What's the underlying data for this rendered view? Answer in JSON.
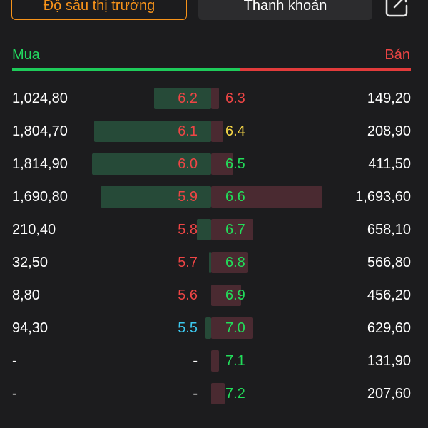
{
  "tabs": {
    "depth": "Độ sâu thị trường",
    "liquidity": "Thanh khoản"
  },
  "header": {
    "buy": "Mua",
    "sell": "Bán"
  },
  "colors": {
    "up": "#22dd5a",
    "down": "#ee4545",
    "ref": "#f5d547",
    "floor": "#3cc8ee",
    "neutral": "#ffffff"
  },
  "rows": [
    {
      "bid_vol": "1,024,80",
      "bid_price": "6.2",
      "bid_color": "down",
      "bid_fill": 0.48,
      "ask_price": "6.3",
      "ask_color": "down",
      "ask_vol": "149,20",
      "ask_fill": 0.07
    },
    {
      "bid_vol": "1,804,70",
      "bid_price": "6.1",
      "bid_color": "down",
      "bid_fill": 0.98,
      "ask_price": "6.4",
      "ask_color": "ref",
      "ask_vol": "208,90",
      "ask_fill": 0.11
    },
    {
      "bid_vol": "1,814,90",
      "bid_price": "6.0",
      "bid_color": "down",
      "bid_fill": 1.0,
      "ask_price": "6.5",
      "ask_color": "up",
      "ask_vol": "411,50",
      "ask_fill": 0.2
    },
    {
      "bid_vol": "1,690,80",
      "bid_price": "5.9",
      "bid_color": "down",
      "bid_fill": 0.93,
      "ask_price": "6.6",
      "ask_color": "up",
      "ask_vol": "1,693,60",
      "ask_fill": 1.0
    },
    {
      "bid_vol": "210,40",
      "bid_price": "5.8",
      "bid_color": "down",
      "bid_fill": 0.12,
      "ask_price": "6.7",
      "ask_color": "up",
      "ask_vol": "658,10",
      "ask_fill": 0.38
    },
    {
      "bid_vol": "32,50",
      "bid_price": "5.7",
      "bid_color": "down",
      "bid_fill": 0.02,
      "ask_price": "6.8",
      "ask_color": "up",
      "ask_vol": "566,80",
      "ask_fill": 0.33
    },
    {
      "bid_vol": "8,80",
      "bid_price": "5.6",
      "bid_color": "down",
      "bid_fill": 0.0,
      "ask_price": "6.9",
      "ask_color": "up",
      "ask_vol": "456,20",
      "ask_fill": 0.27
    },
    {
      "bid_vol": "94,30",
      "bid_price": "5.5",
      "bid_color": "floor",
      "bid_fill": 0.05,
      "ask_price": "7.0",
      "ask_color": "up",
      "ask_vol": "629,60",
      "ask_fill": 0.37
    },
    {
      "bid_vol": "-",
      "bid_price": "-",
      "bid_color": "neutral",
      "bid_fill": 0.0,
      "ask_price": "7.1",
      "ask_color": "up",
      "ask_vol": "131,90",
      "ask_fill": 0.07
    },
    {
      "bid_vol": "-",
      "bid_price": "-",
      "bid_color": "neutral",
      "bid_fill": 0.0,
      "ask_price": "7.2",
      "ask_color": "up",
      "ask_vol": "207,60",
      "ask_fill": 0.12
    }
  ]
}
